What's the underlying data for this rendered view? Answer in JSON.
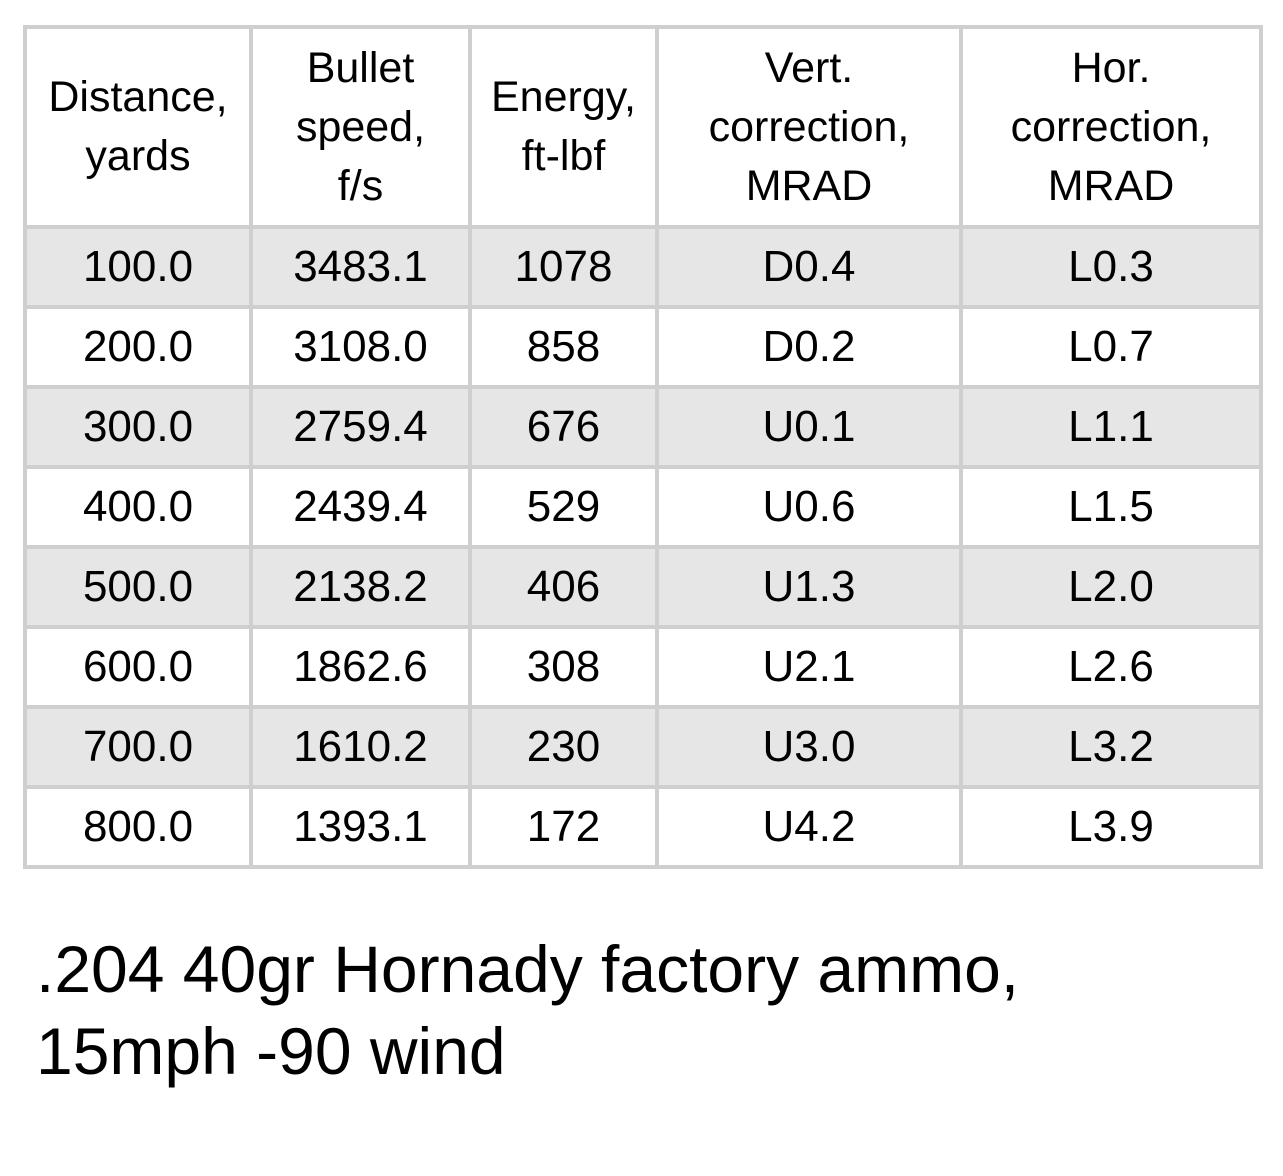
{
  "table": {
    "headers": [
      "Distance,\nyards",
      "Bullet\nspeed,\nf/s",
      "Energy,\nft-lbf",
      "Vert.\ncorrection,\nMRAD",
      "Hor.\ncorrection,\nMRAD"
    ],
    "rows": [
      [
        "100.0",
        "3483.1",
        "1078",
        "D0.4",
        "L0.3"
      ],
      [
        "200.0",
        "3108.0",
        "858",
        "D0.2",
        "L0.7"
      ],
      [
        "300.0",
        "2759.4",
        "676",
        "U0.1",
        "L1.1"
      ],
      [
        "400.0",
        "2439.4",
        "529",
        "U0.6",
        "L1.5"
      ],
      [
        "500.0",
        "2138.2",
        "406",
        "U1.3",
        "L2.0"
      ],
      [
        "600.0",
        "1862.6",
        "308",
        "U2.1",
        "L2.6"
      ],
      [
        "700.0",
        "1610.2",
        "230",
        "U3.0",
        "L3.2"
      ],
      [
        "800.0",
        "1393.1",
        "172",
        "U4.2",
        "L3.9"
      ]
    ]
  },
  "caption": {
    "line1": ".204 40gr Hornady factory ammo,",
    "line2": "15mph -90 wind"
  },
  "colors": {
    "border": "#cfcfcf",
    "stripe": "#e6e6e6",
    "background": "#ffffff",
    "text": "#000000"
  }
}
